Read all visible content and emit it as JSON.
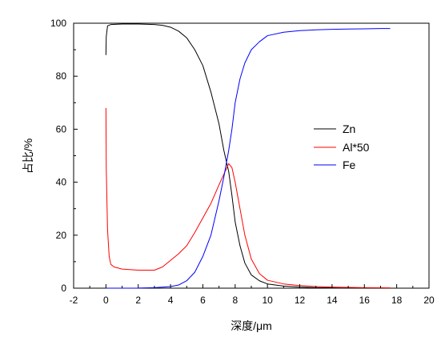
{
  "chart_data": {
    "type": "line",
    "xlabel": "深度/μm",
    "ylabel": "占比/%",
    "xlim": [
      -2,
      20
    ],
    "ylim": [
      0,
      100
    ],
    "x_ticks": [
      -2,
      0,
      2,
      4,
      6,
      8,
      10,
      12,
      14,
      16,
      18,
      20
    ],
    "y_ticks": [
      0,
      20,
      40,
      60,
      80,
      100
    ],
    "grid": false,
    "legend_position": "right",
    "series": [
      {
        "name": "Zn",
        "color": "#000000",
        "x": [
          0,
          0.02,
          0.1,
          0.3,
          1,
          2,
          3,
          3.5,
          4,
          4.5,
          5,
          5.5,
          6,
          6.5,
          7,
          7.3,
          7.6,
          7.8,
          8,
          8.3,
          8.6,
          9,
          9.5,
          10,
          11,
          12,
          13,
          14,
          15,
          16,
          17,
          17.6
        ],
        "y": [
          88,
          95,
          99,
          99.5,
          99.7,
          99.7,
          99.5,
          99.2,
          98.5,
          97,
          94.5,
          90,
          84,
          74,
          62,
          52,
          44,
          35,
          25,
          16,
          9.5,
          5,
          2.8,
          1.6,
          0.8,
          0.4,
          0.2,
          0.1,
          0.05,
          0.03,
          0.02,
          0.02
        ]
      },
      {
        "name": "Al*50",
        "color": "#ff0000",
        "x": [
          0,
          0.02,
          0.1,
          0.2,
          0.3,
          0.5,
          1,
          2,
          3,
          3.5,
          4,
          4.5,
          5,
          5.5,
          6,
          6.5,
          7,
          7.3,
          7.6,
          7.8,
          8,
          8.3,
          8.6,
          9,
          9.5,
          10,
          11,
          12,
          13,
          14,
          15,
          16,
          17,
          17.6
        ],
        "y": [
          68,
          45,
          22,
          12,
          9,
          8,
          7.2,
          6.8,
          6.8,
          8,
          10.5,
          13,
          16,
          21,
          26.5,
          32,
          39,
          43,
          47,
          45.5,
          40,
          30,
          20,
          11,
          5.5,
          3,
          1.6,
          1,
          0.6,
          0.4,
          0.3,
          0.2,
          0.15,
          0.1
        ]
      },
      {
        "name": "Fe",
        "color": "#0000ff",
        "x": [
          0,
          2,
          3,
          4,
          4.5,
          5,
          5.5,
          6,
          6.5,
          7,
          7.3,
          7.6,
          7.8,
          8,
          8.3,
          8.6,
          9,
          9.5,
          10,
          11,
          12,
          13,
          14,
          15,
          16,
          17,
          17.6
        ],
        "y": [
          0,
          0.02,
          0.2,
          0.6,
          1.2,
          2.8,
          6,
          12,
          20,
          33,
          42,
          52,
          60,
          70,
          79,
          85,
          90,
          93,
          95.3,
          96.6,
          97.2,
          97.5,
          97.7,
          97.8,
          97.9,
          98,
          98
        ]
      }
    ]
  }
}
